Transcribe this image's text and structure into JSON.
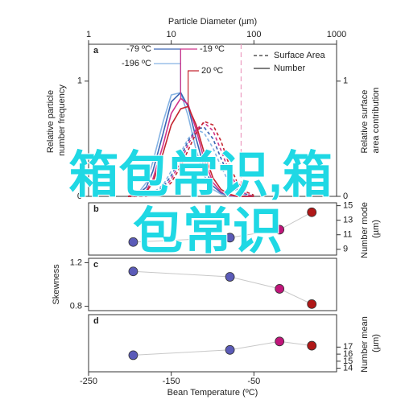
{
  "watermark": [
    "箱包常识,箱",
    "包常识"
  ],
  "chart_data": [
    {
      "type": "line",
      "panel": "a",
      "xlabel": "Particle Diameter (µm)",
      "x_log": true,
      "x": [
        3,
        4,
        5,
        6,
        8,
        10,
        13,
        16,
        20,
        25,
        32,
        40,
        50,
        63,
        80,
        100
      ],
      "xlim": [
        1,
        1000
      ],
      "xticks": [
        1,
        10,
        100,
        1000
      ],
      "ylabel": "Relative particle number frequency",
      "ylim": [
        0,
        1.32
      ],
      "yticks": [
        0,
        1
      ],
      "y2label": "Relative surface area contribution",
      "y2lim": [
        0,
        1.32
      ],
      "y2ticks": [
        0,
        1
      ],
      "legend": [
        "Surface Area",
        "Number"
      ],
      "legend_loc": "upper right",
      "ref_x": 70,
      "ref_color": "#ec9cc0",
      "series": [
        {
          "name": "-196 ºC",
          "color": "#86b4e4",
          "values": [
            0,
            0.03,
            0.12,
            0.3,
            0.65,
            0.88,
            0.9,
            0.7,
            0.4,
            0.18,
            0.06,
            0.02,
            0,
            0,
            0,
            0
          ],
          "surface_values": [
            0,
            0,
            0.01,
            0.03,
            0.1,
            0.22,
            0.38,
            0.5,
            0.58,
            0.55,
            0.42,
            0.26,
            0.12,
            0.04,
            0.01,
            0
          ]
        },
        {
          "name": "-79 ºC",
          "color": "#3a64b4",
          "values": [
            0,
            0.02,
            0.08,
            0.22,
            0.55,
            0.82,
            0.9,
            0.78,
            0.5,
            0.25,
            0.09,
            0.03,
            0.01,
            0,
            0,
            0
          ],
          "surface_values": [
            0,
            0,
            0,
            0.02,
            0.08,
            0.18,
            0.34,
            0.48,
            0.58,
            0.6,
            0.5,
            0.33,
            0.17,
            0.06,
            0.02,
            0
          ]
        },
        {
          "name": "-19 ºC",
          "color": "#d0348c",
          "values": [
            0,
            0.01,
            0.05,
            0.15,
            0.45,
            0.72,
            0.85,
            0.8,
            0.58,
            0.32,
            0.12,
            0.04,
            0.01,
            0,
            0,
            0
          ],
          "surface_values": [
            0,
            0,
            0,
            0.01,
            0.06,
            0.15,
            0.3,
            0.45,
            0.58,
            0.64,
            0.57,
            0.4,
            0.22,
            0.08,
            0.02,
            0
          ]
        },
        {
          "name": "20 ºC",
          "color": "#c42630",
          "values": [
            0,
            0.01,
            0.04,
            0.12,
            0.38,
            0.62,
            0.76,
            0.78,
            0.62,
            0.38,
            0.16,
            0.06,
            0.02,
            0,
            0,
            0
          ],
          "surface_values": [
            0,
            0,
            0,
            0.01,
            0.05,
            0.12,
            0.26,
            0.4,
            0.55,
            0.65,
            0.62,
            0.48,
            0.28,
            0.12,
            0.04,
            0.01
          ]
        }
      ]
    },
    {
      "type": "scatter",
      "panel": "b",
      "y2label": "Number mode (µm)",
      "x": [
        -196,
        -79,
        -19,
        20
      ],
      "values": [
        10,
        10.6,
        11.7,
        14.1
      ],
      "colors": [
        "#5b5bb8",
        "#5b5bb8",
        "#c0157a",
        "#b01818"
      ],
      "y2lim": [
        8.2,
        15.4
      ],
      "y2ticks": [
        9,
        11,
        13,
        15
      ]
    },
    {
      "type": "scatter",
      "panel": "c",
      "ylabel": "Skewness",
      "x": [
        -196,
        -79,
        -19,
        20
      ],
      "values": [
        1.12,
        1.07,
        0.96,
        0.82
      ],
      "colors": [
        "#5b5bb8",
        "#5b5bb8",
        "#c0157a",
        "#b01818"
      ],
      "ylim": [
        0.76,
        1.24
      ],
      "yticks": [
        0.8,
        1.2
      ]
    },
    {
      "type": "scatter",
      "panel": "d",
      "y2label": "Number mean (µm)",
      "x": [
        -196,
        -79,
        -19,
        20
      ],
      "values": [
        15.85,
        16.6,
        17.8,
        17.2
      ],
      "colors": [
        "#5b5bb8",
        "#5b5bb8",
        "#c0157a",
        "#b01818"
      ],
      "y2lim": [
        13.5,
        21.6
      ],
      "y2ticks": [
        14,
        15,
        16,
        17
      ],
      "xlabel": "Bean Temperature (ºC)",
      "xlim": [
        -250,
        50
      ],
      "xticks": [
        -250,
        -150,
        -50
      ]
    }
  ]
}
